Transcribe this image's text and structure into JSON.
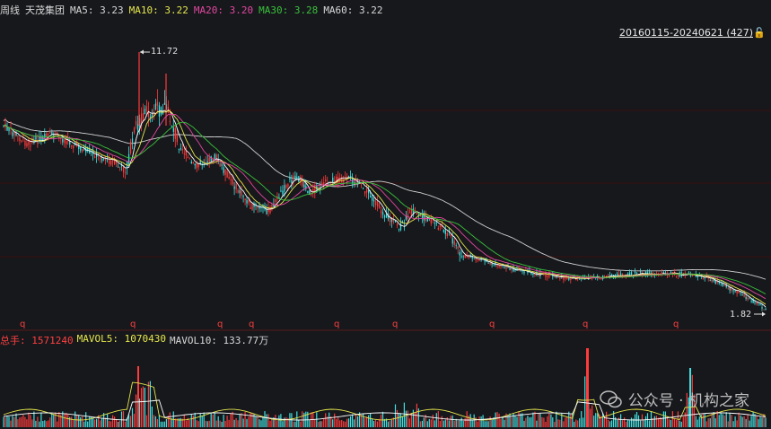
{
  "header": {
    "period": "周线",
    "stock_name": "天茂集团",
    "ma5": "MA5: 3.23",
    "ma10": "MA10: 3.22",
    "ma20": "MA20: 3.20",
    "ma30": "MA30: 3.28",
    "ma60": "MA60: 3.22"
  },
  "date_range": "20160115-20240621 (427)",
  "high_label": "11.72",
  "low_label": "1.82",
  "q_marker": "q",
  "volume_header": {
    "total": "总手: 1571240",
    "mavol5": "MAVOL5: 1070430",
    "mavol10": "MAVOL10: 133.77万"
  },
  "watermark": "公众号 · 机构之家",
  "colors": {
    "up": "#ff3b3b",
    "down": "#40e0e0",
    "ma5": "#ffffff",
    "ma10": "#e6e64c",
    "ma20": "#e2479f",
    "ma30": "#3bc13b",
    "ma60": "#cfcfcf",
    "grid": "#3a0e0e"
  }
}
